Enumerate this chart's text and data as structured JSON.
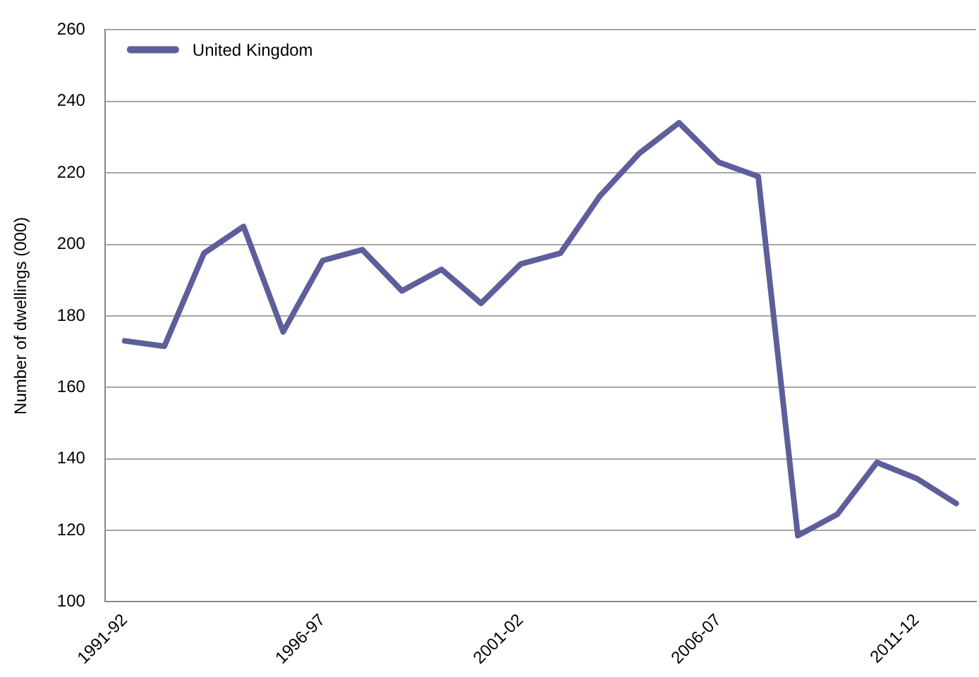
{
  "chart_data": {
    "type": "line",
    "ylabel": "Number of dwellings (000)",
    "categories": [
      "1991-92",
      null,
      null,
      null,
      null,
      "1996-97",
      null,
      null,
      null,
      null,
      "2001-02",
      null,
      null,
      null,
      null,
      "2006-07",
      null,
      null,
      null,
      null,
      "2011-12",
      null
    ],
    "series": [
      {
        "name": "United Kingdom",
        "color": "#5d5e9a",
        "values": [
          173,
          171.5,
          197.5,
          205,
          175.5,
          195.5,
          198.5,
          187,
          193,
          183.5,
          194.5,
          197.5,
          213.5,
          225.5,
          234,
          223,
          219,
          118.5,
          124.5,
          139,
          134.5,
          127.5
        ]
      }
    ],
    "ylim": [
      100,
      260
    ],
    "yticks": [
      100,
      120,
      140,
      160,
      180,
      200,
      220,
      240,
      260
    ],
    "grid": "y",
    "legend": "top left",
    "marker": "none",
    "line_style": "solid"
  }
}
